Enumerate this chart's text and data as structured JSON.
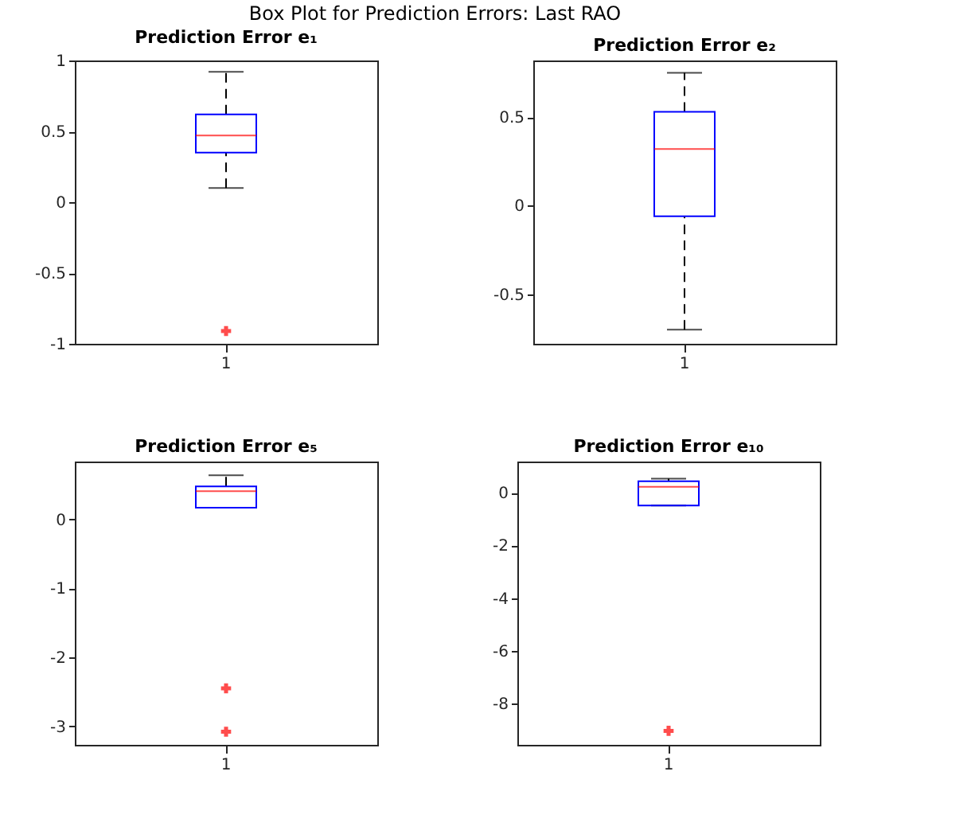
{
  "chart_data": [
    {
      "type": "box",
      "title": "Prediction Error e₁",
      "annotations": [
        "Box Plot for Prediction Errors: Last RAO"
      ],
      "categories": [
        "1"
      ],
      "ylim": [
        -1,
        1
      ],
      "yticks": [
        -1,
        -0.5,
        0,
        0.5,
        1
      ],
      "grid": false,
      "marker": "cross",
      "line_style": "dashed",
      "boxes": [
        {
          "low": 0.1,
          "q1": 0.35,
          "median": 0.47,
          "q3": 0.62,
          "high": 0.92,
          "outliers": [
            -0.91
          ]
        }
      ]
    },
    {
      "type": "box",
      "title": "Prediction Error e₂",
      "categories": [
        "1"
      ],
      "ylim": [
        -0.78,
        0.82
      ],
      "yticks": [
        -0.5,
        0,
        0.5
      ],
      "grid": false,
      "line_style": "dashed",
      "boxes": [
        {
          "low": -0.7,
          "q1": -0.06,
          "median": 0.32,
          "q3": 0.53,
          "high": 0.75
        }
      ]
    },
    {
      "type": "box",
      "title": "Prediction Error e₅",
      "categories": [
        "1"
      ],
      "ylim": [
        -3.27,
        0.84
      ],
      "yticks": [
        -3,
        -2,
        -1,
        0
      ],
      "grid": false,
      "marker": "cross",
      "line_style": "dashed",
      "boxes": [
        {
          "low": 0.17,
          "q1": 0.17,
          "median": 0.41,
          "q3": 0.48,
          "high": 0.64,
          "outliers": [
            -2.45,
            -3.08
          ]
        }
      ]
    },
    {
      "type": "box",
      "title": "Prediction Error e₁₀",
      "categories": [
        "1"
      ],
      "ylim": [
        -9.57,
        1.18
      ],
      "yticks": [
        -8,
        -6,
        -4,
        -2,
        0
      ],
      "grid": false,
      "marker": "cross",
      "line_style": "dashed",
      "boxes": [
        {
          "low": -0.49,
          "q1": -0.49,
          "median": 0.22,
          "q3": 0.43,
          "high": 0.53,
          "outliers": [
            -9.04
          ]
        }
      ]
    }
  ]
}
